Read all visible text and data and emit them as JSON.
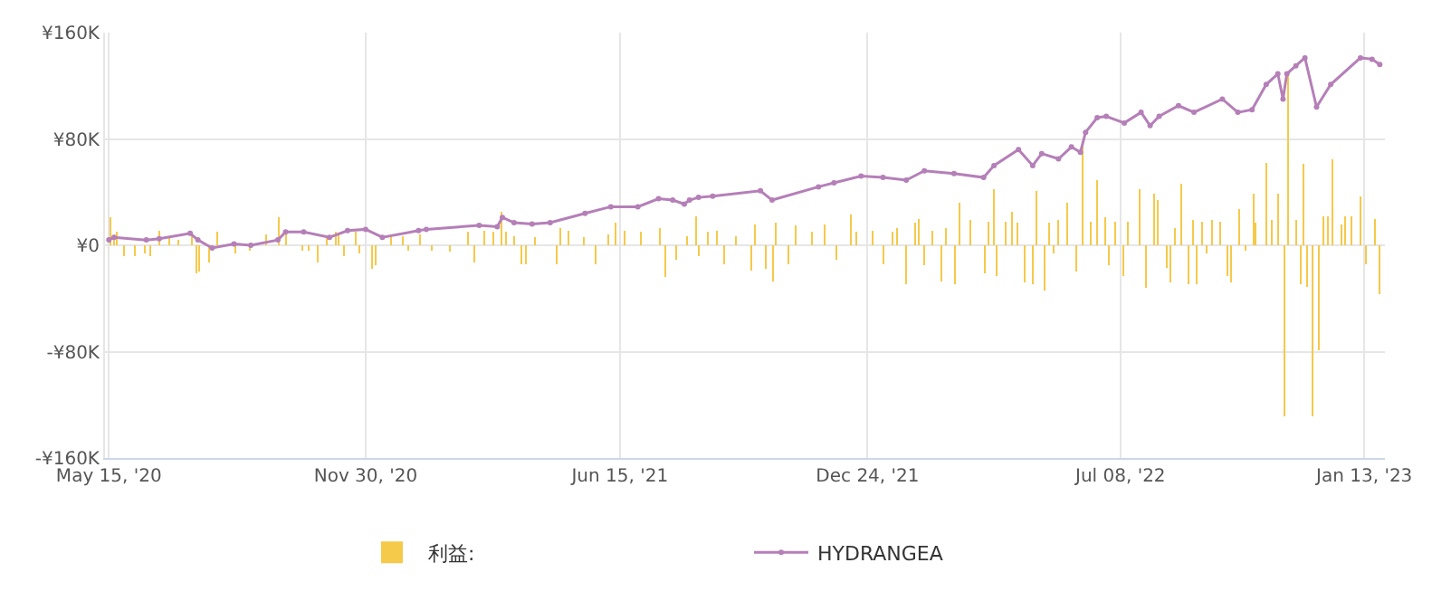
{
  "chart_data": {
    "type": "line",
    "xlim": [
      "2020-05-12",
      "2023-01-29"
    ],
    "xticks": [
      {
        "value": "2020-05-15",
        "label": "May 15, '20"
      },
      {
        "value": "2020-11-30",
        "label": "Nov 30, '20"
      },
      {
        "value": "2021-06-15",
        "label": "Jun 15, '21"
      },
      {
        "value": "2021-12-24",
        "label": "Dec 24, '21"
      },
      {
        "value": "2022-07-08",
        "label": "Jul 08, '22"
      },
      {
        "value": "2023-01-13",
        "label": "Jan 13, '23"
      }
    ],
    "ylim": [
      -160000,
      160000
    ],
    "yticks": [
      {
        "value": -160000,
        "label": "-¥160K"
      },
      {
        "value": -80000,
        "label": "-¥80K"
      },
      {
        "value": 0,
        "label": "¥0"
      },
      {
        "value": 80000,
        "label": "¥80K"
      },
      {
        "value": 160000,
        "label": "¥160K"
      }
    ],
    "grid": true,
    "legend": "bottom",
    "series": [
      {
        "name": "利益:",
        "type": "bar",
        "color": "#f5c94a",
        "x": [
          "2020-05-16",
          "2020-05-19",
          "2020-05-21",
          "2020-05-27",
          "2020-06-04",
          "2020-06-12",
          "2020-06-16",
          "2020-06-23",
          "2020-07-01",
          "2020-07-08",
          "2020-07-18",
          "2020-07-22",
          "2020-07-24",
          "2020-08-01",
          "2020-08-07",
          "2020-08-21",
          "2020-09-01",
          "2020-09-14",
          "2020-09-24",
          "2020-09-29",
          "2020-10-12",
          "2020-10-17",
          "2020-10-24",
          "2020-10-31",
          "2020-11-07",
          "2020-11-09",
          "2020-11-13",
          "2020-11-22",
          "2020-11-25",
          "2020-12-05",
          "2020-12-08",
          "2020-12-20",
          "2020-12-29",
          "2021-01-02",
          "2021-01-11",
          "2021-01-20",
          "2021-02-03",
          "2021-02-17",
          "2021-02-22",
          "2021-03-02",
          "2021-03-09",
          "2021-03-15",
          "2021-03-19",
          "2021-03-25",
          "2021-03-31",
          "2021-04-03",
          "2021-04-10",
          "2021-04-27",
          "2021-04-30",
          "2021-05-06",
          "2021-05-18",
          "2021-05-27",
          "2021-06-06",
          "2021-06-12",
          "2021-06-19",
          "2021-07-01",
          "2021-07-16",
          "2021-07-20",
          "2021-07-29",
          "2021-08-06",
          "2021-08-13",
          "2021-08-15",
          "2021-08-22",
          "2021-08-29",
          "2021-09-04",
          "2021-09-13",
          "2021-09-25",
          "2021-09-28",
          "2021-10-06",
          "2021-10-12",
          "2021-10-14",
          "2021-10-24",
          "2021-10-29",
          "2021-11-11",
          "2021-11-21",
          "2021-11-30",
          "2021-12-11",
          "2021-12-15",
          "2021-12-28",
          "2022-01-05",
          "2022-01-12",
          "2022-01-16",
          "2022-01-23",
          "2022-01-30",
          "2022-02-02",
          "2022-02-06",
          "2022-02-12",
          "2022-02-19",
          "2022-02-23",
          "2022-03-02",
          "2022-03-05",
          "2022-03-14",
          "2022-03-25",
          "2022-03-28",
          "2022-04-01",
          "2022-04-03",
          "2022-04-10",
          "2022-04-15",
          "2022-04-19",
          "2022-04-25",
          "2022-05-01",
          "2022-05-04",
          "2022-05-10",
          "2022-05-14",
          "2022-05-17",
          "2022-05-21",
          "2022-05-28",
          "2022-06-04",
          "2022-06-09",
          "2022-06-15",
          "2022-06-20",
          "2022-06-26",
          "2022-06-29",
          "2022-07-04",
          "2022-07-10",
          "2022-07-14",
          "2022-07-23",
          "2022-07-28",
          "2022-08-03",
          "2022-08-06",
          "2022-08-13",
          "2022-08-16",
          "2022-08-19",
          "2022-08-24",
          "2022-08-30",
          "2022-09-02",
          "2022-09-05",
          "2022-09-09",
          "2022-09-13",
          "2022-09-17",
          "2022-09-23",
          "2022-09-29",
          "2022-10-02",
          "2022-10-08",
          "2022-10-13",
          "2022-10-19",
          "2022-10-21",
          "2022-10-29",
          "2022-11-02",
          "2022-11-07",
          "2022-11-12",
          "2022-11-15",
          "2022-11-21",
          "2022-11-25",
          "2022-11-27",
          "2022-11-30",
          "2022-12-04",
          "2022-12-09",
          "2022-12-12",
          "2022-12-16",
          "2022-12-19",
          "2022-12-26",
          "2022-12-29",
          "2023-01-03",
          "2023-01-10",
          "2023-01-14",
          "2023-01-21",
          "2023-01-25"
        ],
        "values": [
          21000,
          8000,
          10000,
          -8000,
          -8000,
          -6000,
          -8000,
          11000,
          6000,
          4000,
          10000,
          -21000,
          -20000,
          -13000,
          10000,
          -6000,
          -4000,
          8000,
          21000,
          8000,
          -4000,
          -4000,
          -13000,
          6000,
          10000,
          8000,
          -8000,
          10000,
          -6000,
          -18000,
          -15000,
          6000,
          7000,
          -4000,
          8000,
          -4000,
          -5000,
          10000,
          -13000,
          11000,
          10000,
          25000,
          10000,
          7000,
          -14000,
          -14000,
          6000,
          -14000,
          13000,
          11000,
          6000,
          -14000,
          8000,
          17000,
          11000,
          10000,
          13000,
          -24000,
          -11000,
          7000,
          22000,
          -8000,
          10000,
          11000,
          -14000,
          7000,
          -19000,
          16000,
          -18000,
          -27000,
          17000,
          -14000,
          15000,
          10000,
          16000,
          -11000,
          23000,
          10000,
          11000,
          -14000,
          10000,
          13000,
          -29000,
          17000,
          20000,
          -15000,
          11000,
          -27000,
          13000,
          -29000,
          32000,
          19000,
          -21000,
          18000,
          42000,
          -23000,
          18000,
          25000,
          17000,
          -28000,
          -29000,
          41000,
          -34000,
          17000,
          -6000,
          19000,
          32000,
          -20000,
          77000,
          18000,
          49000,
          21000,
          -15000,
          18000,
          -23000,
          18000,
          42000,
          -32000,
          39000,
          34000,
          -17000,
          -28000,
          13000,
          46000,
          -29000,
          19000,
          -29000,
          18000,
          -6000,
          19000,
          18000,
          -23000,
          -28000,
          27000,
          -4000,
          39000,
          17000,
          62000,
          19000,
          39000,
          -129000,
          131000,
          19000,
          -29000,
          61000,
          -31000,
          -129000,
          -79000,
          22000,
          22000,
          65000,
          16000,
          22000,
          22000,
          37000,
          -14000,
          20000,
          -37000
        ]
      },
      {
        "name": "HYDRANGEA",
        "color": "#b57fb8",
        "marker": "circle",
        "line_style": "solid",
        "x": [
          "2020-05-15",
          "2020-05-19",
          "2020-06-13",
          "2020-06-23",
          "2020-07-17",
          "2020-07-23",
          "2020-08-03",
          "2020-08-20",
          "2020-09-02",
          "2020-09-23",
          "2020-09-29",
          "2020-10-13",
          "2020-11-02",
          "2020-11-16",
          "2020-11-30",
          "2020-12-13",
          "2021-01-10",
          "2021-01-16",
          "2021-02-26",
          "2021-03-12",
          "2021-03-16",
          "2021-03-25",
          "2021-04-08",
          "2021-04-22",
          "2021-05-19",
          "2021-06-08",
          "2021-06-29",
          "2021-07-15",
          "2021-07-26",
          "2021-08-04",
          "2021-08-08",
          "2021-08-15",
          "2021-08-26",
          "2021-10-02",
          "2021-10-11",
          "2021-11-16",
          "2021-11-28",
          "2021-12-19",
          "2022-01-05",
          "2022-01-23",
          "2022-02-06",
          "2022-03-01",
          "2022-03-24",
          "2022-04-01",
          "2022-04-20",
          "2022-05-01",
          "2022-05-08",
          "2022-05-21",
          "2022-05-31",
          "2022-06-07",
          "2022-06-11",
          "2022-06-20",
          "2022-06-27",
          "2022-07-11",
          "2022-07-24",
          "2022-07-31",
          "2022-08-07",
          "2022-08-22",
          "2022-09-03",
          "2022-09-25",
          "2022-10-07",
          "2022-10-18",
          "2022-10-29",
          "2022-11-07",
          "2022-11-11",
          "2022-11-14",
          "2022-11-21",
          "2022-11-28",
          "2022-12-07",
          "2022-12-18",
          "2023-01-10",
          "2023-01-19",
          "2023-01-25"
        ],
        "values": [
          4000,
          6000,
          4000,
          5000,
          9000,
          4000,
          -2000,
          1000,
          0,
          4000,
          10000,
          10000,
          6000,
          11000,
          12000,
          6000,
          11000,
          12000,
          15000,
          14000,
          21000,
          17000,
          16000,
          17000,
          24000,
          29000,
          29000,
          35000,
          34000,
          31000,
          34000,
          36000,
          37000,
          41000,
          34000,
          44000,
          47000,
          52000,
          51000,
          49000,
          56000,
          54000,
          51000,
          60000,
          72000,
          60000,
          69000,
          65000,
          74000,
          70000,
          85000,
          96000,
          97000,
          92000,
          100000,
          90000,
          97000,
          105000,
          100000,
          110000,
          100000,
          102000,
          121000,
          129000,
          110000,
          129000,
          135000,
          141000,
          104000,
          121000,
          141000,
          140000,
          136000
        ]
      }
    ]
  }
}
